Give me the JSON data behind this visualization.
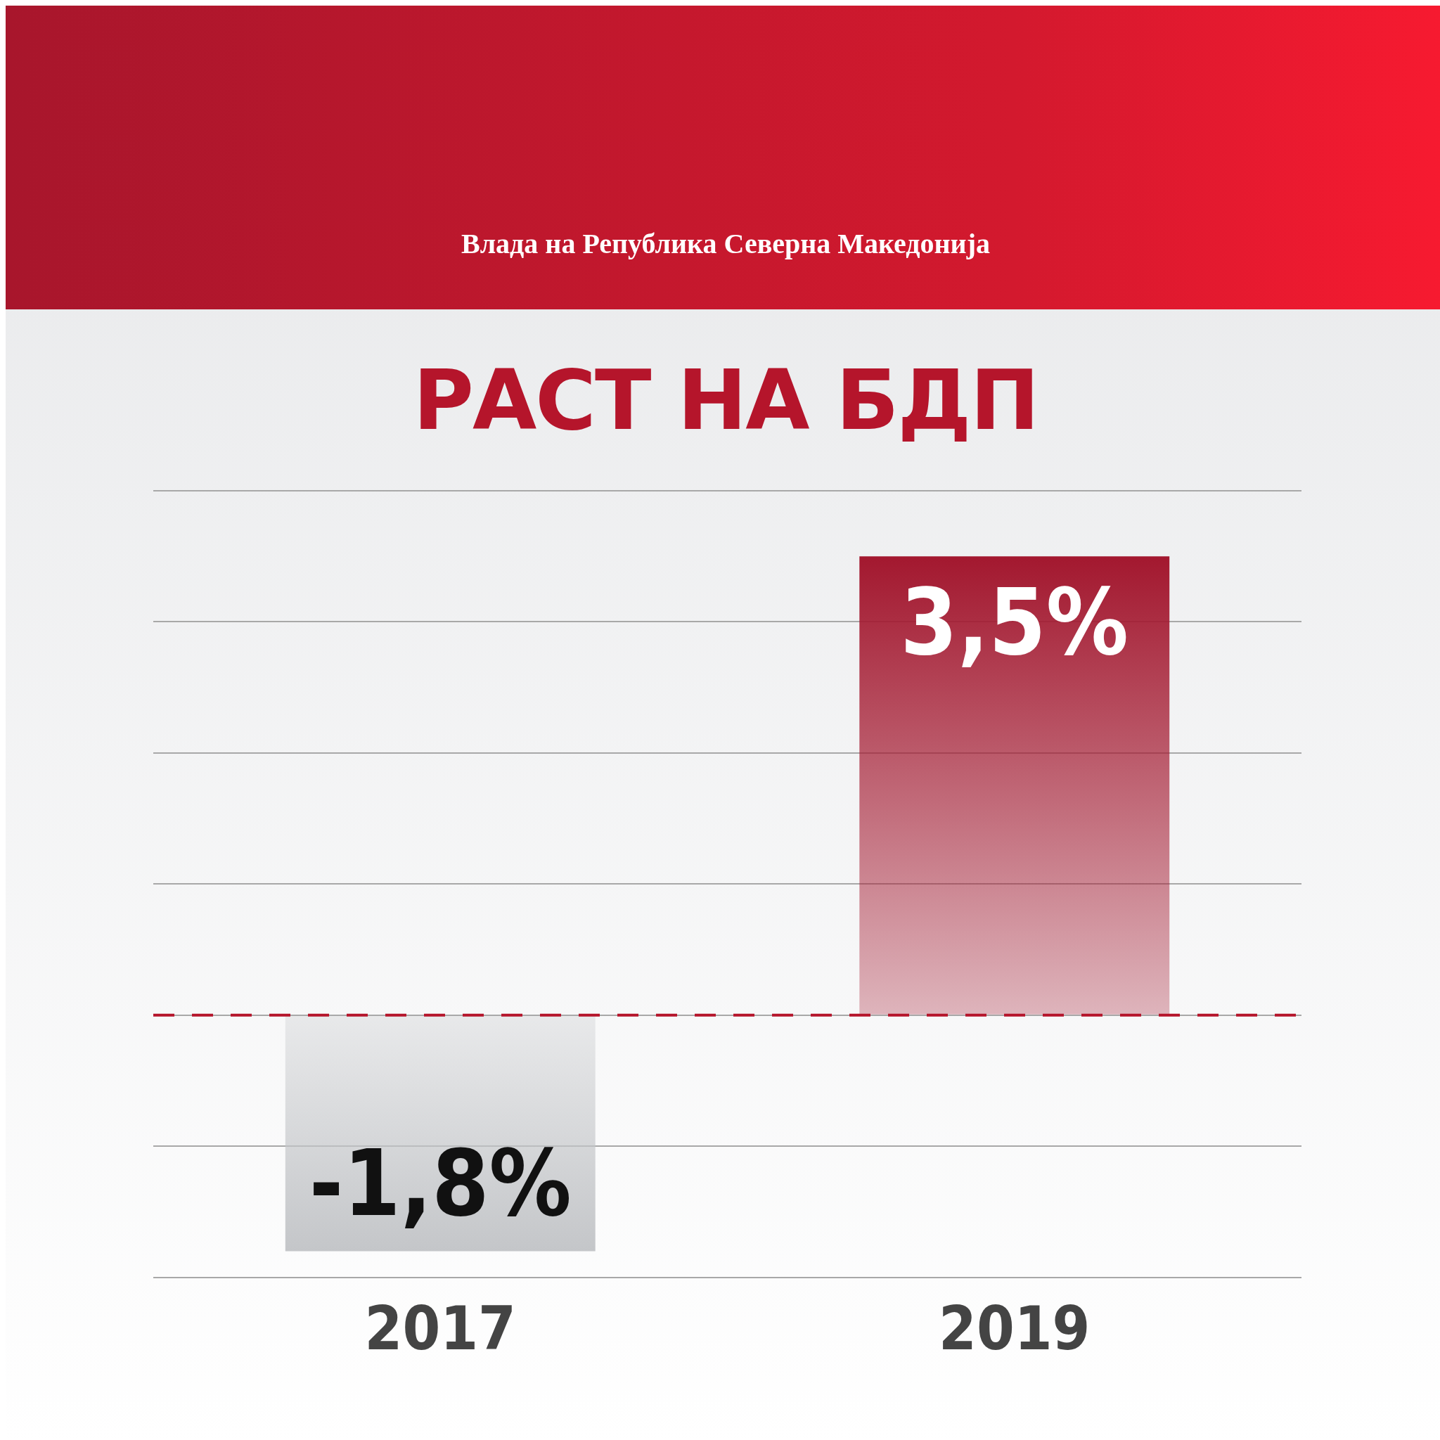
{
  "chart_data": {
    "type": "bar",
    "title": "РАСТ НА БДП",
    "annotations": [
      "Влада на Република Северна Македонија"
    ],
    "categories": [
      "2017",
      "2019"
    ],
    "values": [
      -1.8,
      3.5
    ],
    "colors": [
      "#c4c6c9",
      "#a3182f"
    ],
    "value_labels": [
      "-1,8%",
      "3,5%"
    ],
    "tick_labels": "x",
    "grid": "y",
    "legend": false,
    "ref_lines": [
      {
        "axis": "y",
        "value": 0,
        "color": "#b5152b",
        "line_style": "dashed"
      }
    ]
  }
}
